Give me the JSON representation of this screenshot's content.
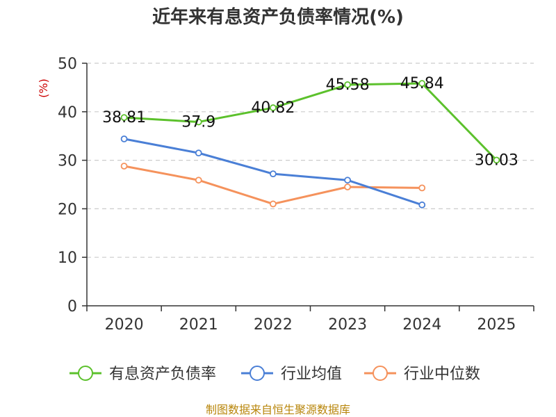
{
  "chart_data": {
    "type": "line",
    "title": "近年来有息资产负债率情况(%)",
    "unit": "(%)",
    "categories": [
      "2020",
      "2021",
      "2022",
      "2023",
      "2024",
      "2025"
    ],
    "ylim": [
      0,
      50
    ],
    "yticks": [
      "0",
      "10",
      "20",
      "30",
      "40",
      "50"
    ],
    "grid": true,
    "legend_position": "bottom",
    "series": [
      {
        "name": "有息资产负债率",
        "color": "#5cc12c",
        "values": [
          38.81,
          37.9,
          40.82,
          45.58,
          45.84,
          30.03
        ],
        "labels": [
          "38.81",
          "37.9",
          "40.82",
          "45.58",
          "45.84",
          "30.03"
        ]
      },
      {
        "name": "行业均值",
        "color": "#4a7fd6",
        "values": [
          34.4,
          31.5,
          27.2,
          25.9,
          20.8,
          null
        ]
      },
      {
        "name": "行业中位数",
        "color": "#f5925c",
        "values": [
          28.8,
          25.9,
          21.0,
          24.5,
          24.3,
          null
        ]
      }
    ],
    "source": "制图数据来自恒生聚源数据库"
  }
}
